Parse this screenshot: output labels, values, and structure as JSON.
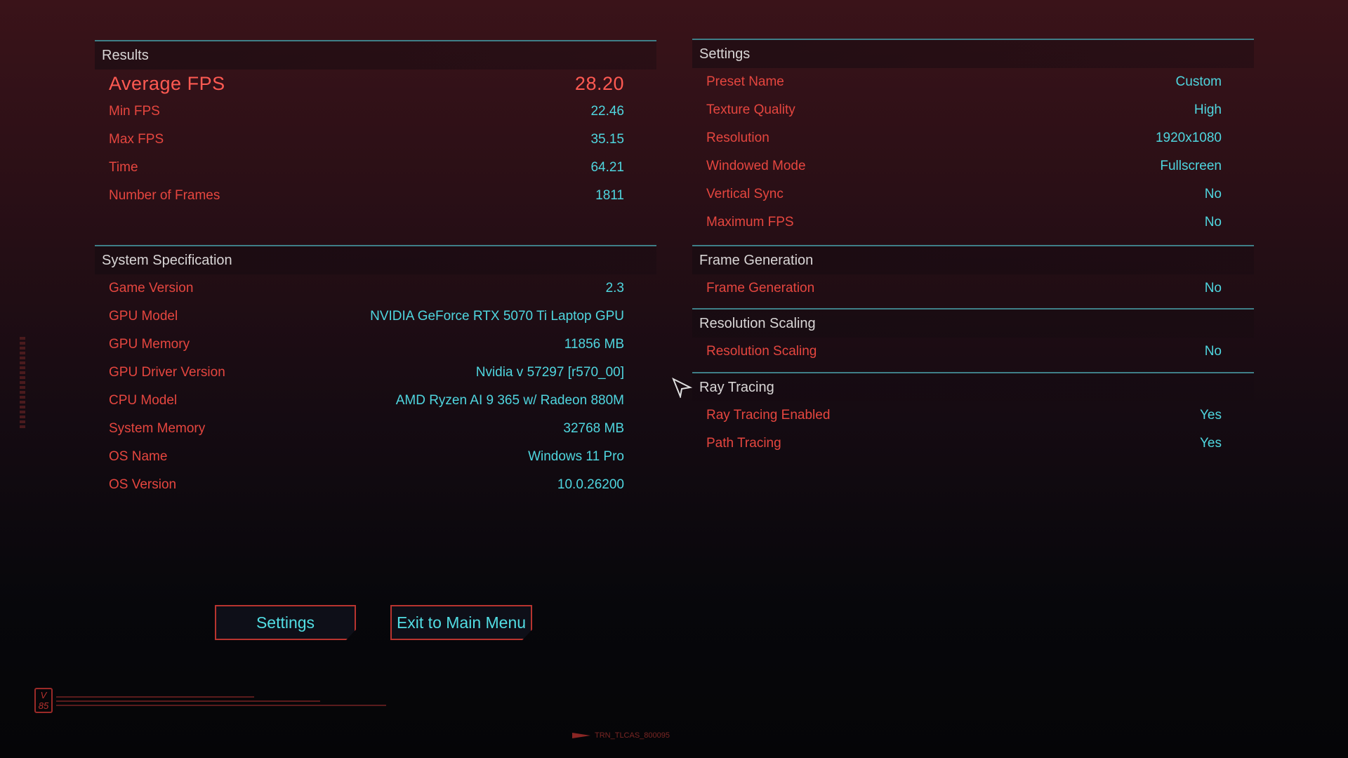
{
  "results": {
    "title": "Results",
    "average": {
      "label": "Average FPS",
      "value": "28.20"
    },
    "rows": [
      {
        "label": "Min FPS",
        "value": "22.46"
      },
      {
        "label": "Max FPS",
        "value": "35.15"
      },
      {
        "label": "Time",
        "value": "64.21"
      },
      {
        "label": "Number of Frames",
        "value": "1811"
      }
    ]
  },
  "system": {
    "title": "System Specification",
    "rows": [
      {
        "label": "Game Version",
        "value": "2.3"
      },
      {
        "label": "GPU Model",
        "value": "NVIDIA GeForce RTX 5070 Ti Laptop GPU"
      },
      {
        "label": "GPU Memory",
        "value": "11856 MB"
      },
      {
        "label": "GPU Driver Version",
        "value": "Nvidia v 57297 [r570_00]"
      },
      {
        "label": "CPU Model",
        "value": "AMD Ryzen AI 9 365 w/ Radeon 880M"
      },
      {
        "label": "System Memory",
        "value": "32768 MB"
      },
      {
        "label": "OS Name",
        "value": "Windows 11 Pro"
      },
      {
        "label": "OS Version",
        "value": "10.0.26200"
      }
    ]
  },
  "settings": {
    "title": "Settings",
    "rows": [
      {
        "label": "Preset Name",
        "value": "Custom"
      },
      {
        "label": "Texture Quality",
        "value": "High"
      },
      {
        "label": "Resolution",
        "value": "1920x1080"
      },
      {
        "label": "Windowed Mode",
        "value": "Fullscreen"
      },
      {
        "label": "Vertical Sync",
        "value": "No"
      },
      {
        "label": "Maximum FPS",
        "value": "No"
      }
    ]
  },
  "frame_generation": {
    "title": "Frame Generation",
    "rows": [
      {
        "label": "Frame Generation",
        "value": "No"
      }
    ]
  },
  "resolution_scaling": {
    "title": "Resolution Scaling",
    "rows": [
      {
        "label": "Resolution Scaling",
        "value": "No"
      }
    ]
  },
  "ray_tracing": {
    "title": "Ray Tracing",
    "rows": [
      {
        "label": "Ray Tracing Enabled",
        "value": "Yes"
      },
      {
        "label": "Path Tracing",
        "value": "Yes"
      }
    ]
  },
  "buttons": {
    "settings": "Settings",
    "exit": "Exit to Main Menu"
  },
  "footer": {
    "badge_top": "V",
    "badge_bottom": "85",
    "code": "TRN_TLCAS_800095"
  },
  "colors": {
    "label": "#e5463f",
    "value": "#4fd6df",
    "average": "#ff5a52",
    "divider": "#3f7f88"
  }
}
